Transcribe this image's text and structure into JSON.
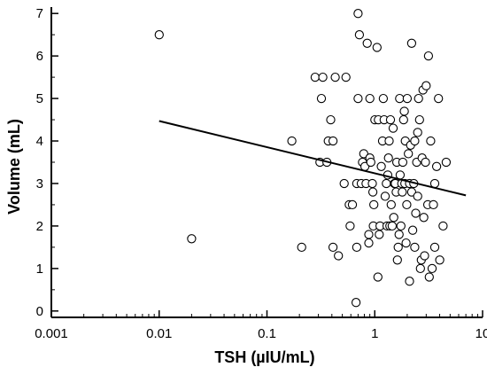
{
  "chart_data": {
    "type": "scatter",
    "xlabel": "TSH (µIU/mL)",
    "ylabel": "Volume (mL)",
    "x_scale": "log",
    "xlim": [
      0.001,
      10
    ],
    "ylim": [
      -0.15,
      7.15
    ],
    "x_ticks": [
      0.001,
      0.01,
      0.1,
      1,
      10
    ],
    "x_tick_labels": [
      "0.001",
      "0.01",
      "0.1",
      "1",
      "10"
    ],
    "y_ticks": [
      0,
      1,
      2,
      3,
      4,
      5,
      6,
      7
    ],
    "y_tick_labels": [
      "0",
      "1",
      "2",
      "3",
      "4",
      "5",
      "6",
      "7"
    ],
    "grid": false,
    "marker": "open-circle",
    "colors": {
      "axis": "#000000",
      "marker_stroke": "#000000",
      "marker_fill": "#ffffff",
      "trend_line": "#000000"
    },
    "trend_line": {
      "x": [
        0.01,
        7
      ],
      "y": [
        4.47,
        2.72
      ]
    },
    "points": [
      [
        0.01,
        6.5
      ],
      [
        0.02,
        1.7
      ],
      [
        0.17,
        4.0
      ],
      [
        0.21,
        1.5
      ],
      [
        0.28,
        5.5
      ],
      [
        0.31,
        3.5
      ],
      [
        0.32,
        5.0
      ],
      [
        0.33,
        5.5
      ],
      [
        0.36,
        3.5
      ],
      [
        0.37,
        4.0
      ],
      [
        0.39,
        4.5
      ],
      [
        0.41,
        4.0
      ],
      [
        0.41,
        1.5
      ],
      [
        0.43,
        5.5
      ],
      [
        0.46,
        1.3
      ],
      [
        0.52,
        3.0
      ],
      [
        0.54,
        5.5
      ],
      [
        0.58,
        2.5
      ],
      [
        0.59,
        2.0
      ],
      [
        0.62,
        2.5
      ],
      [
        0.67,
        0.2
      ],
      [
        0.68,
        1.5
      ],
      [
        0.68,
        3.0
      ],
      [
        0.7,
        7.0
      ],
      [
        0.7,
        5.0
      ],
      [
        0.72,
        6.5
      ],
      [
        0.75,
        3.0
      ],
      [
        0.77,
        3.5
      ],
      [
        0.79,
        3.7
      ],
      [
        0.81,
        3.4
      ],
      [
        0.83,
        3.0
      ],
      [
        0.85,
        6.3
      ],
      [
        0.88,
        1.6
      ],
      [
        0.88,
        1.8
      ],
      [
        0.9,
        3.6
      ],
      [
        0.9,
        5.0
      ],
      [
        0.92,
        3.5
      ],
      [
        0.95,
        3.0
      ],
      [
        0.96,
        2.8
      ],
      [
        0.97,
        2.0
      ],
      [
        0.98,
        2.5
      ],
      [
        1.0,
        4.5
      ],
      [
        1.05,
        6.2
      ],
      [
        1.07,
        0.8
      ],
      [
        1.08,
        4.5
      ],
      [
        1.1,
        1.8
      ],
      [
        1.12,
        2.0
      ],
      [
        1.15,
        3.4
      ],
      [
        1.18,
        4.0
      ],
      [
        1.2,
        5.0
      ],
      [
        1.22,
        4.5
      ],
      [
        1.25,
        2.7
      ],
      [
        1.28,
        3.0
      ],
      [
        1.3,
        2.0
      ],
      [
        1.32,
        3.2
      ],
      [
        1.34,
        3.6
      ],
      [
        1.36,
        4.0
      ],
      [
        1.38,
        2.0
      ],
      [
        1.4,
        4.5
      ],
      [
        1.42,
        2.5
      ],
      [
        1.45,
        2.0
      ],
      [
        1.48,
        4.3
      ],
      [
        1.5,
        2.2
      ],
      [
        1.52,
        3.0
      ],
      [
        1.55,
        3.0
      ],
      [
        1.58,
        2.8
      ],
      [
        1.6,
        3.5
      ],
      [
        1.62,
        1.2
      ],
      [
        1.65,
        1.5
      ],
      [
        1.68,
        1.8
      ],
      [
        1.7,
        5.0
      ],
      [
        1.72,
        3.2
      ],
      [
        1.75,
        2.0
      ],
      [
        1.78,
        3.0
      ],
      [
        1.8,
        2.8
      ],
      [
        1.82,
        3.5
      ],
      [
        1.85,
        4.5
      ],
      [
        1.88,
        4.7
      ],
      [
        1.9,
        3.0
      ],
      [
        1.92,
        4.0
      ],
      [
        1.95,
        1.6
      ],
      [
        1.98,
        2.5
      ],
      [
        2.0,
        5.0
      ],
      [
        2.05,
        3.7
      ],
      [
        2.1,
        0.7
      ],
      [
        2.1,
        3.0
      ],
      [
        2.15,
        3.9
      ],
      [
        2.2,
        2.8
      ],
      [
        2.2,
        6.3
      ],
      [
        2.25,
        1.9
      ],
      [
        2.3,
        3.0
      ],
      [
        2.35,
        4.0
      ],
      [
        2.4,
        2.3
      ],
      [
        2.45,
        3.5
      ],
      [
        2.5,
        2.7
      ],
      [
        2.55,
        5.0
      ],
      [
        2.6,
        4.5
      ],
      [
        2.65,
        1.0
      ],
      [
        2.7,
        1.2
      ],
      [
        2.75,
        3.6
      ],
      [
        2.8,
        5.2
      ],
      [
        2.85,
        2.2
      ],
      [
        2.9,
        1.3
      ],
      [
        2.95,
        3.5
      ],
      [
        3.0,
        5.3
      ],
      [
        3.1,
        2.5
      ],
      [
        3.2,
        0.8
      ],
      [
        3.3,
        4.0
      ],
      [
        3.4,
        1.0
      ],
      [
        3.5,
        2.5
      ],
      [
        3.6,
        1.5
      ],
      [
        3.75,
        3.4
      ],
      [
        3.9,
        5.0
      ],
      [
        4.0,
        1.2
      ],
      [
        4.3,
        2.0
      ],
      [
        4.6,
        3.5
      ],
      [
        3.15,
        6.0
      ],
      [
        2.35,
        1.5
      ],
      [
        3.6,
        3.0
      ],
      [
        2.5,
        4.2
      ]
    ]
  }
}
